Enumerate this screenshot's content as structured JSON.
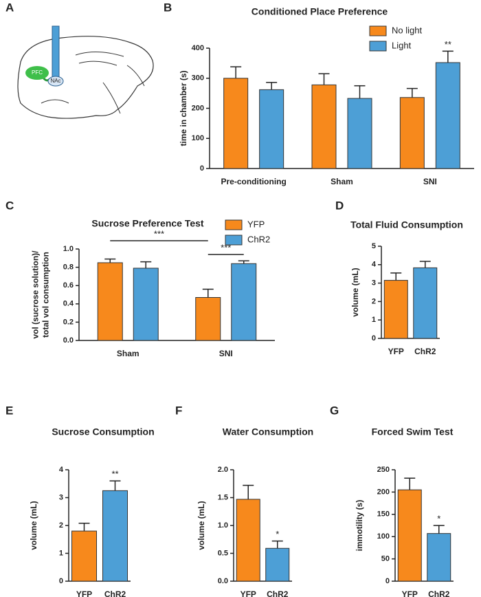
{
  "diagram": {
    "panel": "A",
    "labels": [
      "PFC",
      "NAc"
    ]
  },
  "chart_data": [
    {
      "type": "bar",
      "panel": "B",
      "title": "Conditioned Place Preference",
      "ylabel": [
        "time in chamber (s)"
      ],
      "categories": [
        "Pre-conditioning",
        "Sham",
        "SNI"
      ],
      "series": [
        {
          "name": "No light",
          "color": "#f7891c",
          "values": [
            300,
            278,
            236
          ],
          "errors": [
            38,
            37,
            30
          ],
          "stars": [
            null,
            null,
            null
          ]
        },
        {
          "name": "Light",
          "color": "#4d9fd6",
          "values": [
            262,
            233,
            352
          ],
          "errors": [
            24,
            42,
            38
          ],
          "stars": [
            null,
            null,
            "**"
          ]
        }
      ],
      "ylim": [
        0,
        400
      ],
      "yticks": [
        0,
        100,
        200,
        300,
        400
      ],
      "legend": "top-right"
    },
    {
      "type": "bar",
      "panel": "C",
      "title": "Sucrose Preference Test",
      "ylabel": [
        "vol (sucrose solution)/",
        "total vol consumption"
      ],
      "categories": [
        "Sham",
        "SNI"
      ],
      "series": [
        {
          "name": "YFP",
          "color": "#f7891c",
          "values": [
            0.85,
            0.47
          ],
          "errors": [
            0.04,
            0.09
          ],
          "stars": [
            null,
            null
          ]
        },
        {
          "name": "ChR2",
          "color": "#4d9fd6",
          "values": [
            0.79,
            0.84
          ],
          "errors": [
            0.07,
            0.03
          ],
          "stars": [
            null,
            null
          ]
        }
      ],
      "brackets": [
        "***",
        "***"
      ],
      "ylim": [
        0,
        1.0
      ],
      "yticks": [
        {
          "value": 0,
          "label": "0.0"
        },
        0.2,
        0.4,
        0.6,
        0.8,
        {
          "value": 1.0,
          "label": "1.0"
        }
      ],
      "legend": "top-right"
    },
    {
      "type": "bar",
      "panel": "D",
      "title": "Total Fluid Consumption",
      "ylabel": [
        "volume (mL)"
      ],
      "categories": [
        "YFP",
        "ChR2"
      ],
      "series": [
        {
          "name": null,
          "colors": [
            "#f7891c",
            "#4d9fd6"
          ],
          "values": [
            3.15,
            3.83
          ],
          "errors": [
            0.4,
            0.35
          ],
          "stars": [
            null,
            null
          ]
        }
      ],
      "ylim": [
        0,
        5
      ],
      "yticks": [
        0,
        1,
        2,
        3,
        4,
        5
      ]
    },
    {
      "type": "bar",
      "panel": "E",
      "title": "Sucrose Consumption",
      "ylabel": [
        "volume (mL)"
      ],
      "categories": [
        "YFP",
        "ChR2"
      ],
      "series": [
        {
          "name": null,
          "colors": [
            "#f7891c",
            "#4d9fd6"
          ],
          "values": [
            1.8,
            3.25
          ],
          "errors": [
            0.28,
            0.35
          ],
          "stars": [
            null,
            "**"
          ]
        }
      ],
      "ylim": [
        0,
        4
      ],
      "yticks": [
        0,
        1,
        2,
        3,
        4
      ]
    },
    {
      "type": "bar",
      "panel": "F",
      "title": "Water Consumption",
      "ylabel": [
        "volume (mL)"
      ],
      "categories": [
        "YFP",
        "ChR2"
      ],
      "series": [
        {
          "name": null,
          "colors": [
            "#f7891c",
            "#4d9fd6"
          ],
          "values": [
            1.47,
            0.59
          ],
          "errors": [
            0.25,
            0.13
          ],
          "stars": [
            null,
            "*"
          ]
        }
      ],
      "ylim": [
        0,
        2.0
      ],
      "yticks": [
        {
          "value": 0,
          "label": "0.0"
        },
        0.5,
        {
          "value": 1.0,
          "label": "1.0"
        },
        1.5,
        {
          "value": 2.0,
          "label": "2.0"
        }
      ]
    },
    {
      "type": "bar",
      "panel": "G",
      "title": "Forced Swim Test",
      "ylabel": [
        "immotility (s)"
      ],
      "categories": [
        "YFP",
        "ChR2"
      ],
      "series": [
        {
          "name": null,
          "colors": [
            "#f7891c",
            "#4d9fd6"
          ],
          "values": [
            205,
            107
          ],
          "errors": [
            26,
            18
          ],
          "stars": [
            null,
            "*"
          ]
        }
      ],
      "ylim": [
        0,
        250
      ],
      "yticks": [
        0,
        50,
        100,
        150,
        200,
        250
      ]
    }
  ]
}
